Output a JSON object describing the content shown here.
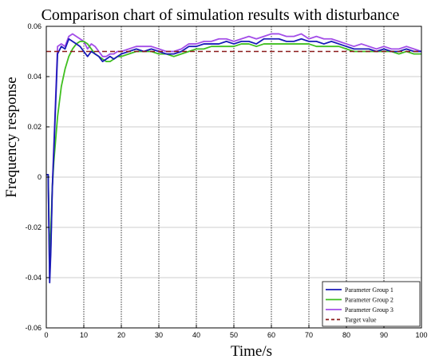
{
  "chart_data": {
    "type": "line",
    "title": "Comparison chart of simulation results with disturbance",
    "xlabel": "Time/s",
    "ylabel": "Frequency response",
    "xlim": [
      0,
      100
    ],
    "ylim": [
      -0.06,
      0.06
    ],
    "x_ticks": [
      0,
      10,
      20,
      30,
      40,
      50,
      60,
      70,
      80,
      90,
      100
    ],
    "y_ticks": [
      -0.06,
      -0.04,
      -0.02,
      0,
      0.02,
      0.04,
      0.06
    ],
    "x_tick_labels": [
      "0",
      "10",
      "20",
      "30",
      "40",
      "50",
      "60",
      "70",
      "80",
      "90",
      "100"
    ],
    "y_tick_labels": [
      "-0.06",
      "-0.04",
      "-0.02",
      "0",
      "0.02",
      "0.04",
      "0.06"
    ],
    "grid": {
      "x": "dotted",
      "y": "solid"
    },
    "legend_position": "bottom-right",
    "series": [
      {
        "name": "Parameter Group 1",
        "color": "#1a1ab8",
        "style": "solid",
        "x": [
          0,
          0.5,
          0.9,
          1.2,
          1.6,
          2,
          3,
          4,
          5,
          6,
          7,
          8,
          9,
          10,
          11,
          12,
          13,
          14,
          15,
          16,
          17,
          18,
          19,
          20,
          22,
          24,
          26,
          28,
          30,
          32,
          34,
          36,
          38,
          40,
          42,
          44,
          46,
          48,
          50,
          52,
          54,
          56,
          58,
          60,
          62,
          64,
          66,
          68,
          70,
          72,
          74,
          76,
          78,
          80,
          82,
          84,
          86,
          88,
          90,
          92,
          94,
          96,
          98,
          100
        ],
        "y": [
          0.001,
          0.001,
          -0.042,
          -0.03,
          -0.005,
          0.01,
          0.049,
          0.052,
          0.051,
          0.055,
          0.054,
          0.053,
          0.052,
          0.05,
          0.048,
          0.05,
          0.049,
          0.048,
          0.046,
          0.047,
          0.048,
          0.047,
          0.048,
          0.049,
          0.05,
          0.051,
          0.05,
          0.051,
          0.05,
          0.049,
          0.049,
          0.05,
          0.052,
          0.052,
          0.053,
          0.053,
          0.053,
          0.054,
          0.053,
          0.054,
          0.054,
          0.053,
          0.055,
          0.055,
          0.055,
          0.054,
          0.054,
          0.055,
          0.054,
          0.054,
          0.053,
          0.054,
          0.053,
          0.052,
          0.051,
          0.051,
          0.051,
          0.05,
          0.051,
          0.05,
          0.05,
          0.051,
          0.05,
          0.05
        ]
      },
      {
        "name": "Parameter Group 2",
        "color": "#3fbf1f",
        "style": "solid",
        "x": [
          0,
          0.5,
          0.9,
          1.2,
          1.6,
          2,
          3,
          4,
          5,
          6,
          7,
          8,
          9,
          10,
          11,
          12,
          13,
          14,
          15,
          16,
          17,
          18,
          19,
          20,
          22,
          24,
          26,
          28,
          30,
          32,
          34,
          36,
          38,
          40,
          42,
          44,
          46,
          48,
          50,
          52,
          54,
          56,
          58,
          60,
          62,
          64,
          66,
          68,
          70,
          72,
          74,
          76,
          78,
          80,
          82,
          84,
          86,
          88,
          90,
          92,
          94,
          96,
          98,
          100
        ],
        "y": [
          0.001,
          0.001,
          -0.032,
          -0.022,
          -0.004,
          0.006,
          0.024,
          0.036,
          0.043,
          0.048,
          0.051,
          0.053,
          0.054,
          0.054,
          0.053,
          0.051,
          0.049,
          0.048,
          0.047,
          0.046,
          0.046,
          0.047,
          0.048,
          0.048,
          0.049,
          0.05,
          0.05,
          0.05,
          0.049,
          0.049,
          0.048,
          0.049,
          0.05,
          0.051,
          0.051,
          0.052,
          0.052,
          0.052,
          0.052,
          0.053,
          0.053,
          0.052,
          0.053,
          0.053,
          0.053,
          0.053,
          0.053,
          0.053,
          0.053,
          0.052,
          0.052,
          0.052,
          0.052,
          0.051,
          0.05,
          0.05,
          0.05,
          0.05,
          0.05,
          0.05,
          0.049,
          0.05,
          0.049,
          0.049
        ]
      },
      {
        "name": "Parameter Group 3",
        "color": "#a34de8",
        "style": "solid",
        "x": [
          0,
          0.5,
          0.9,
          1.2,
          1.6,
          2,
          3,
          4,
          5,
          6,
          7,
          8,
          9,
          10,
          11,
          12,
          13,
          14,
          15,
          16,
          17,
          18,
          19,
          20,
          22,
          24,
          26,
          28,
          30,
          32,
          34,
          36,
          38,
          40,
          42,
          44,
          46,
          48,
          50,
          52,
          54,
          56,
          58,
          60,
          62,
          64,
          66,
          68,
          70,
          72,
          74,
          76,
          78,
          80,
          82,
          84,
          86,
          88,
          90,
          92,
          94,
          96,
          98,
          100
        ],
        "y": [
          0.001,
          0.001,
          -0.04,
          -0.028,
          -0.004,
          0.012,
          0.052,
          0.053,
          0.052,
          0.056,
          0.057,
          0.056,
          0.055,
          0.054,
          0.051,
          0.053,
          0.052,
          0.05,
          0.048,
          0.048,
          0.049,
          0.049,
          0.05,
          0.05,
          0.051,
          0.052,
          0.052,
          0.052,
          0.051,
          0.05,
          0.05,
          0.051,
          0.053,
          0.053,
          0.054,
          0.054,
          0.055,
          0.055,
          0.054,
          0.055,
          0.056,
          0.055,
          0.056,
          0.057,
          0.057,
          0.056,
          0.056,
          0.057,
          0.055,
          0.056,
          0.055,
          0.055,
          0.054,
          0.053,
          0.052,
          0.053,
          0.052,
          0.051,
          0.052,
          0.051,
          0.051,
          0.052,
          0.051,
          0.05
        ]
      },
      {
        "name": "Target value",
        "color": "#8b1a1a",
        "style": "dashed",
        "x": [
          0,
          100
        ],
        "y": [
          0.05,
          0.05
        ]
      }
    ]
  }
}
